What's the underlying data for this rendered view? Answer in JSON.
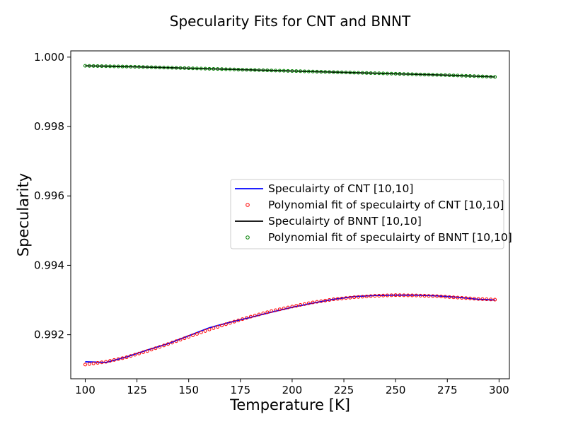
{
  "chart_data": {
    "type": "line",
    "title": "Specularity Fits for CNT and BNNT",
    "xlabel": "Temperature [K]",
    "ylabel": "Specularity",
    "xlim": [
      93,
      305
    ],
    "ylim": [
      0.99073,
      1.00018
    ],
    "xticks": [
      {
        "value": 100,
        "label": "100"
      },
      {
        "value": 125,
        "label": "125"
      },
      {
        "value": 150,
        "label": "150"
      },
      {
        "value": 175,
        "label": "175"
      },
      {
        "value": 200,
        "label": "200"
      },
      {
        "value": 225,
        "label": "225"
      },
      {
        "value": 250,
        "label": "250"
      },
      {
        "value": 275,
        "label": "275"
      },
      {
        "value": 300,
        "label": "300"
      }
    ],
    "yticks": [
      {
        "value": 0.992,
        "label": "0.992"
      },
      {
        "value": 0.994,
        "label": "0.994"
      },
      {
        "value": 0.996,
        "label": "0.996"
      },
      {
        "value": 0.998,
        "label": "0.998"
      },
      {
        "value": 1.0,
        "label": "1.000"
      }
    ],
    "grid": false,
    "legend_position": "center-right",
    "series": [
      {
        "name": "Speculairty of CNT [10,10]",
        "style": "line",
        "color": "#0000ff",
        "x": [
          100,
          110,
          120,
          130,
          140,
          150,
          160,
          170,
          180,
          190,
          200,
          210,
          220,
          230,
          240,
          250,
          260,
          270,
          280,
          290,
          298
        ],
        "y": [
          0.99122,
          0.9912,
          0.99136,
          0.99156,
          0.99174,
          0.99197,
          0.9922,
          0.99236,
          0.9925,
          0.99265,
          0.99279,
          0.99291,
          0.99302,
          0.9931,
          0.99313,
          0.99314,
          0.99314,
          0.99312,
          0.99308,
          0.99302,
          0.993
        ]
      },
      {
        "name": "Polynomial fit of speculairty of CNT [10,10]",
        "style": "markers",
        "color": "#ff0000",
        "x": [
          100,
          110,
          120,
          130,
          140,
          150,
          160,
          170,
          180,
          190,
          200,
          210,
          220,
          230,
          240,
          250,
          260,
          270,
          280,
          290,
          298
        ],
        "y": [
          0.99114,
          0.99122,
          0.99135,
          0.99153,
          0.99173,
          0.99194,
          0.99215,
          0.99234,
          0.99252,
          0.99268,
          0.99281,
          0.99293,
          0.99302,
          0.99308,
          0.99312,
          0.99314,
          0.99313,
          0.99311,
          0.99307,
          0.99303,
          0.99301
        ]
      },
      {
        "name": "Speculairty of BNNT [10,10]",
        "style": "line",
        "color": "#000000",
        "x": [
          100,
          125,
          150,
          175,
          200,
          225,
          250,
          275,
          298
        ],
        "y": [
          0.99975,
          0.99972,
          0.99968,
          0.99964,
          0.9996,
          0.99956,
          0.99952,
          0.99948,
          0.99943
        ]
      },
      {
        "name": "Polynomial fit of speculairty of BNNT [10,10]",
        "style": "markers",
        "color": "#008000",
        "x": [
          100,
          125,
          150,
          175,
          200,
          225,
          250,
          275,
          298
        ],
        "y": [
          0.99975,
          0.99972,
          0.99968,
          0.99964,
          0.9996,
          0.99956,
          0.99952,
          0.99948,
          0.99943
        ]
      }
    ]
  }
}
